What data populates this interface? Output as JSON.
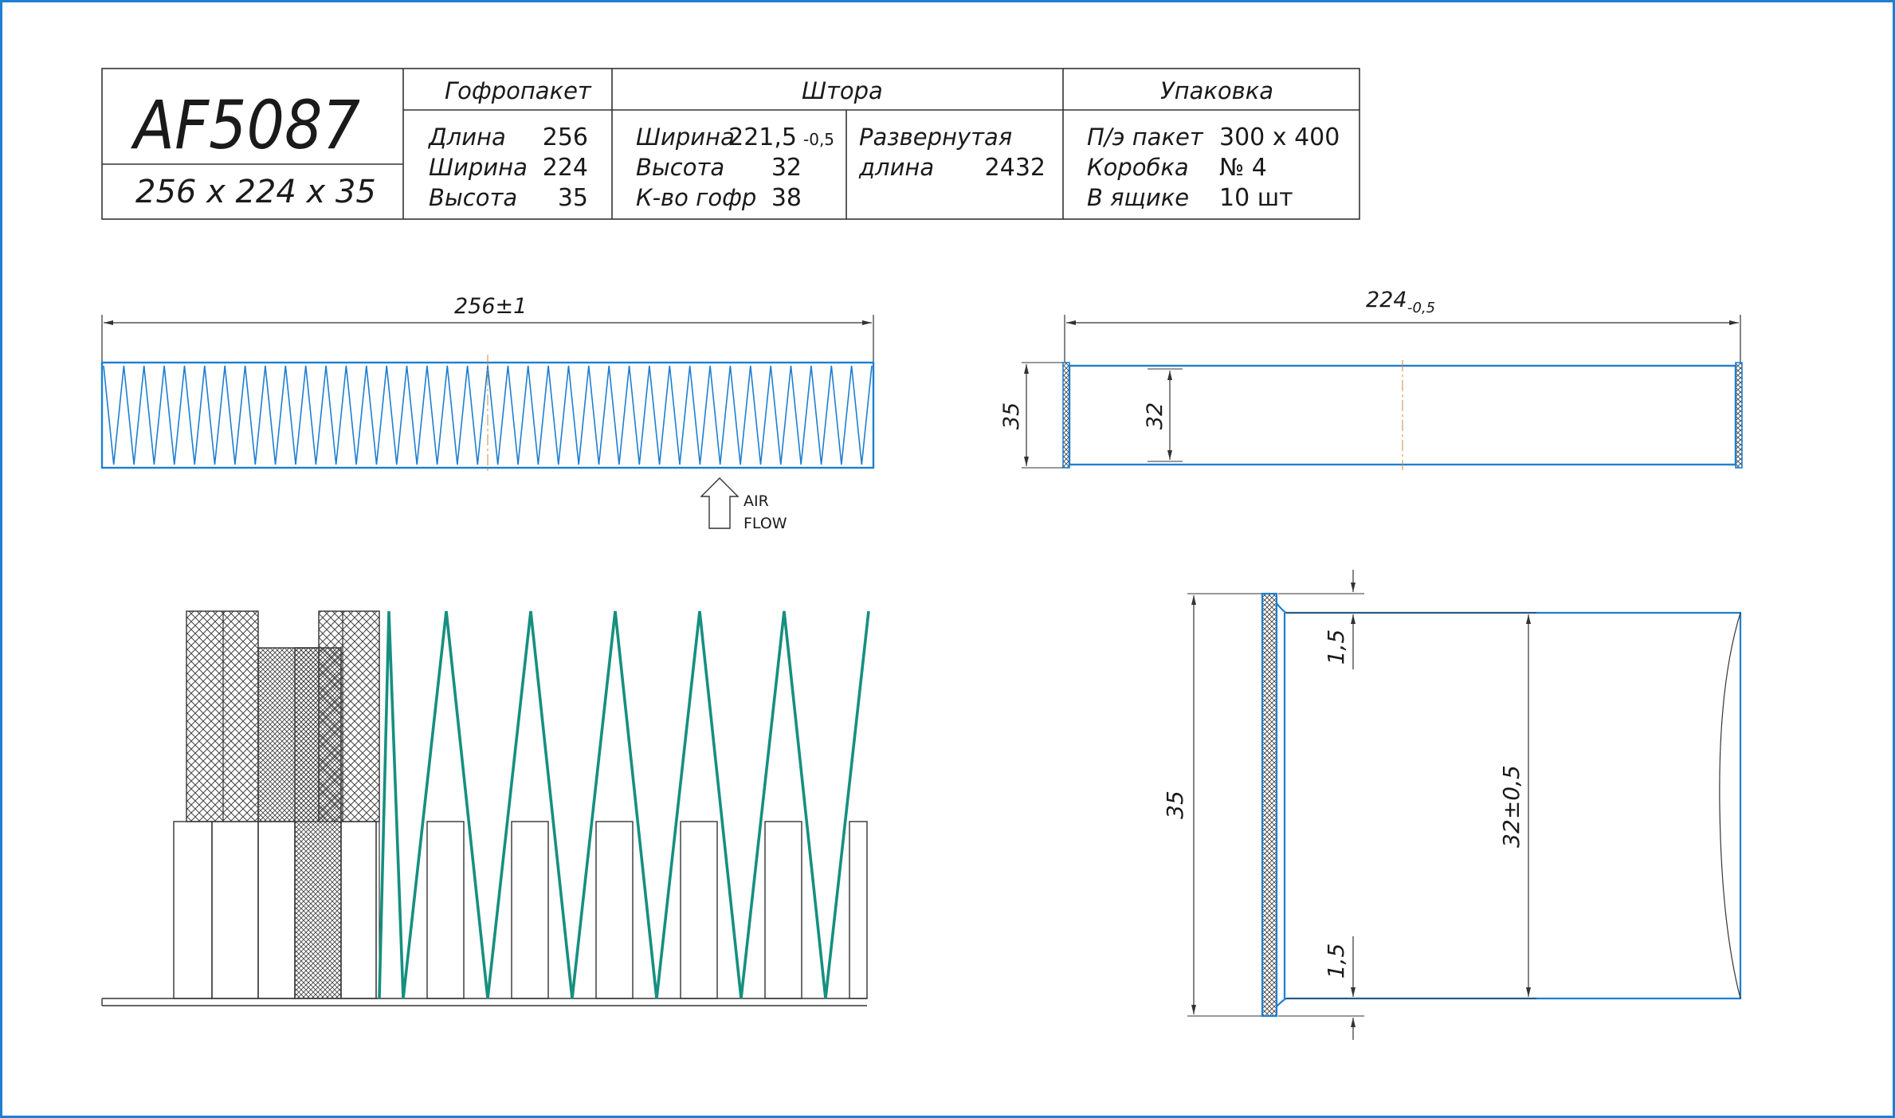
{
  "title_block": {
    "model": "AF5087",
    "size": "256 x 224 x 35",
    "sections": {
      "gofropaket": "Гофропакет",
      "shtora": "Штора",
      "upakovka": "Упаковка"
    },
    "gofropaket": {
      "length_label": "Длина",
      "length_value": "256",
      "width_label": "Ширина",
      "width_value": "224",
      "height_label": "Высота",
      "height_value": "35"
    },
    "shtora": {
      "width_label": "Ширина",
      "width_value": "221,5",
      "width_tol": "-0,5",
      "height_label": "Высота",
      "height_value": "32",
      "count_label": "К-во гофр",
      "count_value": "38",
      "unfolded_label_1": "Развернутая",
      "unfolded_label_2": "длина",
      "unfolded_value": "2432"
    },
    "upakovka": {
      "bag_label": "П/э пакет",
      "bag_value": "300 x 400",
      "box_label": "Коробка",
      "box_value": "№ 4",
      "crate_label": "В ящике",
      "crate_value": "10 шт"
    }
  },
  "front_view": {
    "length_dim": "256±1",
    "pleat_count": 38
  },
  "airflow": {
    "line1": "AIR",
    "line2": "FLOW"
  },
  "side_view": {
    "width_dim": "224",
    "width_tol": "-0,5",
    "height_outer": "35",
    "height_inner": "32"
  },
  "detail_view": {
    "pleat_peaks": 6
  },
  "section_view": {
    "height_outer": "35",
    "height_inner": "32±0,5",
    "edge_top": "1,5",
    "edge_bottom": "1,5"
  },
  "colors": {
    "frame": "#1f7fd0",
    "media": "#1f7fd0",
    "pleat": "#168f80",
    "line": "#333333",
    "centerline": "#c88a4a"
  }
}
